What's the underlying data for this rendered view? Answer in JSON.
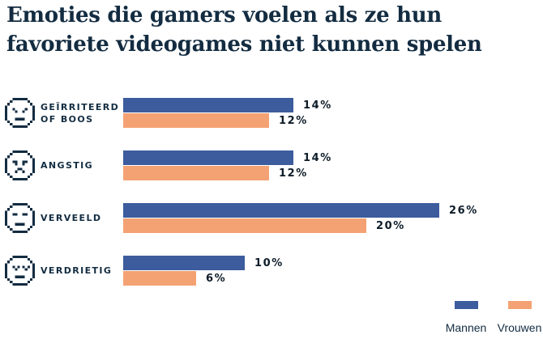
{
  "title": {
    "text": "Emoties die gamers voelen als ze hun favoriete videogames niet kunnen spelen"
  },
  "colors": {
    "ink": "#132c41",
    "value_label": "#0e1c28",
    "mannen_blue": "#3c5c9d",
    "vrouwen_orange": "#f4a274",
    "background": "#ffffff"
  },
  "chart_data": {
    "type": "bar",
    "orientation": "horizontal",
    "title": "Emoties die gamers voelen als ze hun favoriete videogames niet kunnen spelen",
    "categories": [
      "Geïrriteerd of boos",
      "Angstig",
      "Verveeld",
      "Verdrietig"
    ],
    "series": [
      {
        "name": "Mannen",
        "color": "#3c5c9d",
        "values": [
          14,
          14,
          26,
          10
        ]
      },
      {
        "name": "Vrouwen",
        "color": "#f4a274",
        "values": [
          12,
          12,
          20,
          6
        ]
      }
    ],
    "value_suffix": "%",
    "xlim": [
      0,
      30
    ],
    "grid": false,
    "axis_ticks": "none",
    "legend_position": "bottom-right"
  },
  "rows": [
    {
      "slug": "geirriteerd-of-boos",
      "label_lines": [
        "GEÏRRITEERD",
        "OF BOOS"
      ],
      "icon": "angry-face"
    },
    {
      "slug": "angstig",
      "label_lines": [
        "ANGSTIG"
      ],
      "icon": "anxious-face"
    },
    {
      "slug": "verveeld",
      "label_lines": [
        "VERVEELD"
      ],
      "icon": "bored-face"
    },
    {
      "slug": "verdrietig",
      "label_lines": [
        "VERDRIETIG"
      ],
      "icon": "sad-face"
    }
  ],
  "legend": {
    "items": [
      {
        "label": "Mannen",
        "color": "#3c5c9d"
      },
      {
        "label": "Vrouwen",
        "color": "#f4a274"
      }
    ]
  },
  "icons": {
    "angry-face": [
      "...######...",
      "..#......#..",
      ".#........#.",
      "#..........#",
      "#..#....#..#",
      "#...#..#...#",
      "#..........#",
      "#..........#",
      "#...####...#",
      ".#........#.",
      "..#......#..",
      "...######..."
    ],
    "anxious-face": [
      "...######...",
      "..#......#..",
      ".#........#.",
      "#..........#",
      "#..##..##..#",
      "#...#..#...#",
      "#..........#",
      "#....##....#",
      "#...#..#...#",
      ".#........#.",
      "..#......#..",
      "...######..."
    ],
    "bored-face": [
      "...######...",
      "..#......#..",
      ".#........#.",
      "#..........#",
      "#..##..##..#",
      "#..........#",
      "#..........#",
      "#..........#",
      "#...####...#",
      ".#........#.",
      "..#......#..",
      "...######..."
    ],
    "sad-face": [
      "...######...",
      "..#......#..",
      ".#........#.",
      "#..........#",
      "#..#.#.#.#.#",
      "#...#...#..#",
      "#..........#",
      "#..........#",
      "#...####...#",
      ".#........#.",
      "..#......#..",
      "...######..."
    ]
  }
}
